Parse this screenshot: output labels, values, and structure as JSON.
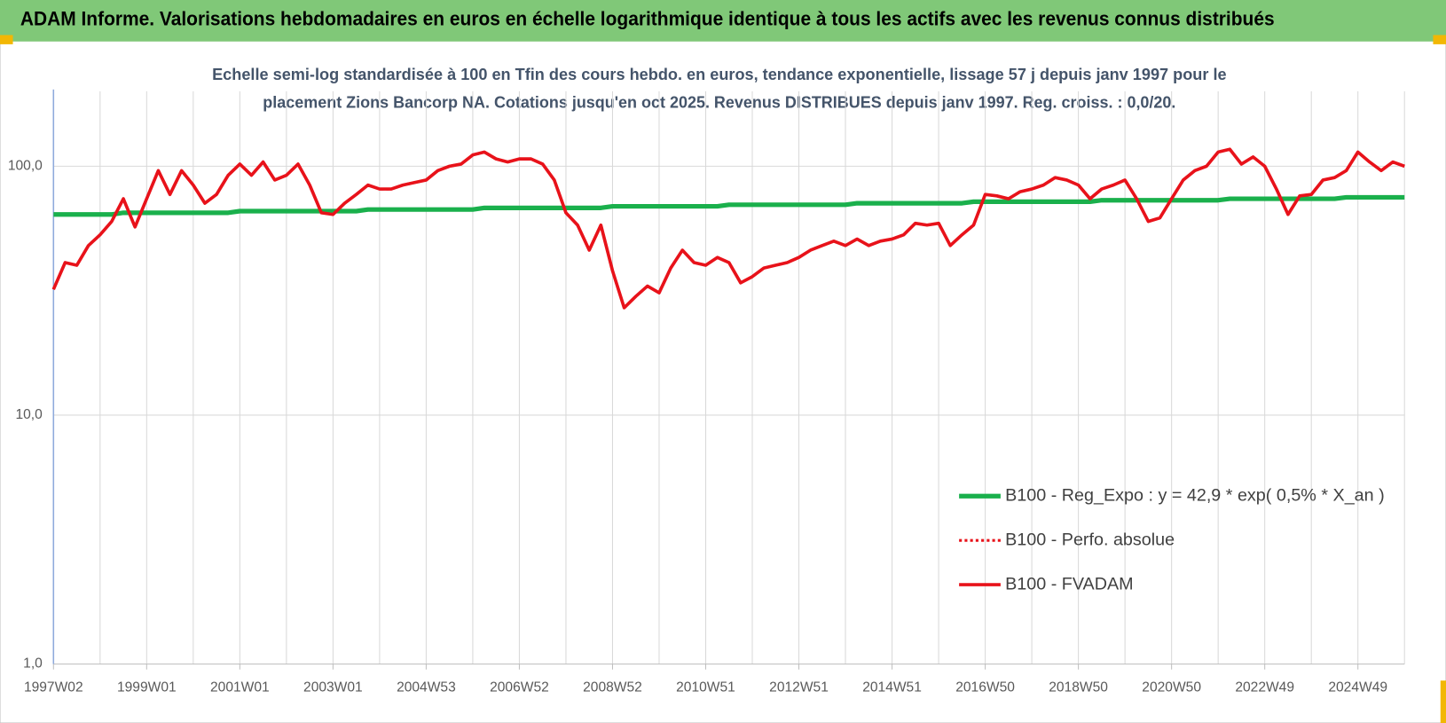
{
  "page_title": "ADAM Informe. Valorisations hebdomadaires en euros en échelle logarithmique identique à tous les actifs avec les revenus connus distribués",
  "chart_data": {
    "type": "line",
    "title": [
      "Echelle semi-log standardisée à 100 en Tfin des cours hebdo. en euros, tendance exponentielle, lissage 57 j depuis janv 1997 pour le",
      "placement Zions Bancorp NA. Cotations jusqu'en oct 2025. Revenus DISTRIBUES depuis janv 1997. Reg. croiss. : 0,0/20."
    ],
    "log_scale": true,
    "grid": true,
    "legend": "right",
    "ylim": [
      1,
      200
    ],
    "yticks": [
      {
        "value": 1,
        "label": "1,0"
      },
      {
        "value": 10,
        "label": "10,0"
      },
      {
        "value": 100,
        "label": "100,0"
      }
    ],
    "categories": [
      "1997W02",
      null,
      null,
      null,
      null,
      null,
      null,
      null,
      "1999W01",
      null,
      null,
      null,
      null,
      null,
      null,
      null,
      "2001W01",
      null,
      null,
      null,
      null,
      null,
      null,
      null,
      "2003W01",
      null,
      null,
      null,
      null,
      null,
      null,
      null,
      "2004W53",
      null,
      null,
      null,
      null,
      null,
      null,
      null,
      "2006W52",
      null,
      null,
      null,
      null,
      null,
      null,
      null,
      "2008W52",
      null,
      null,
      null,
      null,
      null,
      null,
      null,
      "2010W51",
      null,
      null,
      null,
      null,
      null,
      null,
      null,
      "2012W51",
      null,
      null,
      null,
      null,
      null,
      null,
      null,
      "2014W51",
      null,
      null,
      null,
      null,
      null,
      null,
      null,
      "2016W50",
      null,
      null,
      null,
      null,
      null,
      null,
      null,
      "2018W50",
      null,
      null,
      null,
      null,
      null,
      null,
      null,
      "2020W50",
      null,
      null,
      null,
      null,
      null,
      null,
      null,
      "2022W49",
      null,
      null,
      null,
      null,
      null,
      null,
      null,
      "2024W49",
      null,
      null,
      null,
      null
    ],
    "series": [
      {
        "name": "B100 - Reg_Expo : y = 42,9 * exp( 0,5% *  X_an )",
        "color": "#1ab04c",
        "dash": "solid",
        "width": 5,
        "values": [
          64,
          64,
          64,
          64,
          64,
          64,
          65,
          65,
          65,
          65,
          65,
          65,
          65,
          65,
          65,
          65,
          66,
          66,
          66,
          66,
          66,
          66,
          66,
          66,
          66,
          66,
          66,
          67,
          67,
          67,
          67,
          67,
          67,
          67,
          67,
          67,
          67,
          68,
          68,
          68,
          68,
          68,
          68,
          68,
          68,
          68,
          68,
          68,
          69,
          69,
          69,
          69,
          69,
          69,
          69,
          69,
          69,
          69,
          70,
          70,
          70,
          70,
          70,
          70,
          70,
          70,
          70,
          70,
          70,
          71,
          71,
          71,
          71,
          71,
          71,
          71,
          71,
          71,
          71,
          72,
          72,
          72,
          72,
          72,
          72,
          72,
          72,
          72,
          72,
          72,
          73,
          73,
          73,
          73,
          73,
          73,
          73,
          73,
          73,
          73,
          73,
          74,
          74,
          74,
          74,
          74,
          74,
          74,
          74,
          74,
          74,
          75,
          75,
          75,
          75,
          75,
          75
        ]
      },
      {
        "name": "B100 - Perfo. absolue",
        "color": "#e8121a",
        "dash": "dotted",
        "width": 3,
        "values": [
          32,
          41,
          40,
          48,
          53,
          60,
          74,
          57,
          74,
          96,
          77,
          96,
          84,
          71,
          77,
          92,
          102,
          92,
          104,
          88,
          92,
          102,
          84,
          65,
          64,
          71,
          77,
          84,
          81,
          81,
          84,
          86,
          88,
          96,
          100,
          102,
          111,
          114,
          107,
          104,
          107,
          107,
          102,
          88,
          65,
          58,
          46,
          58,
          38,
          27,
          30,
          33,
          31,
          39,
          46,
          41,
          40,
          43,
          41,
          34,
          36,
          39,
          40,
          41,
          43,
          46,
          48,
          50,
          48,
          51,
          48,
          50,
          51,
          53,
          59,
          58,
          59,
          48,
          53,
          58,
          77,
          76,
          74,
          79,
          81,
          84,
          90,
          88,
          84,
          74,
          81,
          84,
          88,
          74,
          60,
          62,
          74,
          88,
          96,
          100,
          114,
          117,
          102,
          109,
          100,
          81,
          64,
          76,
          77,
          88,
          90,
          96,
          114,
          104,
          96,
          104,
          100
        ]
      },
      {
        "name": "B100 - FVADAM",
        "color": "#e8121a",
        "dash": "solid",
        "width": 3.5,
        "values": [
          32,
          41,
          40,
          48,
          53,
          60,
          74,
          57,
          74,
          96,
          77,
          96,
          84,
          71,
          77,
          92,
          102,
          92,
          104,
          88,
          92,
          102,
          84,
          65,
          64,
          71,
          77,
          84,
          81,
          81,
          84,
          86,
          88,
          96,
          100,
          102,
          111,
          114,
          107,
          104,
          107,
          107,
          102,
          88,
          65,
          58,
          46,
          58,
          38,
          27,
          30,
          33,
          31,
          39,
          46,
          41,
          40,
          43,
          41,
          34,
          36,
          39,
          40,
          41,
          43,
          46,
          48,
          50,
          48,
          51,
          48,
          50,
          51,
          53,
          59,
          58,
          59,
          48,
          53,
          58,
          77,
          76,
          74,
          79,
          81,
          84,
          90,
          88,
          84,
          74,
          81,
          84,
          88,
          74,
          60,
          62,
          74,
          88,
          96,
          100,
          114,
          117,
          102,
          109,
          100,
          81,
          64,
          76,
          77,
          88,
          90,
          96,
          114,
          104,
          96,
          104,
          100
        ]
      }
    ]
  }
}
